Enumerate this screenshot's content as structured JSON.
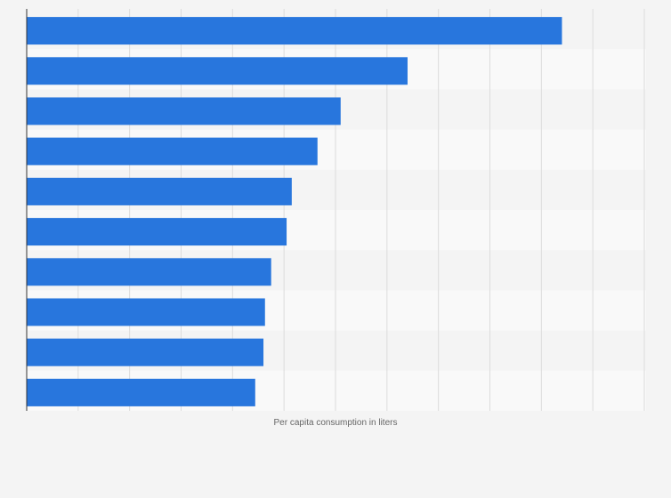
{
  "chart_data": {
    "type": "bar",
    "orientation": "horizontal",
    "title": "",
    "xlabel": "Per capita consumption in liters",
    "ylabel": "",
    "categories": [
      "",
      "",
      "",
      "",
      "",
      "",
      "",
      "",
      "",
      ""
    ],
    "values": [
      104,
      74,
      61,
      56.5,
      51.5,
      50.5,
      47.5,
      46.3,
      46,
      44.4
    ],
    "xlim": [
      0,
      120
    ],
    "grid": true,
    "legend": "none",
    "colors": {
      "bar": "#2876dd",
      "background": "#f4f4f4",
      "band_alt": "#f9f9f9",
      "grid": "#dcdcdc",
      "axis": "#333333"
    }
  }
}
